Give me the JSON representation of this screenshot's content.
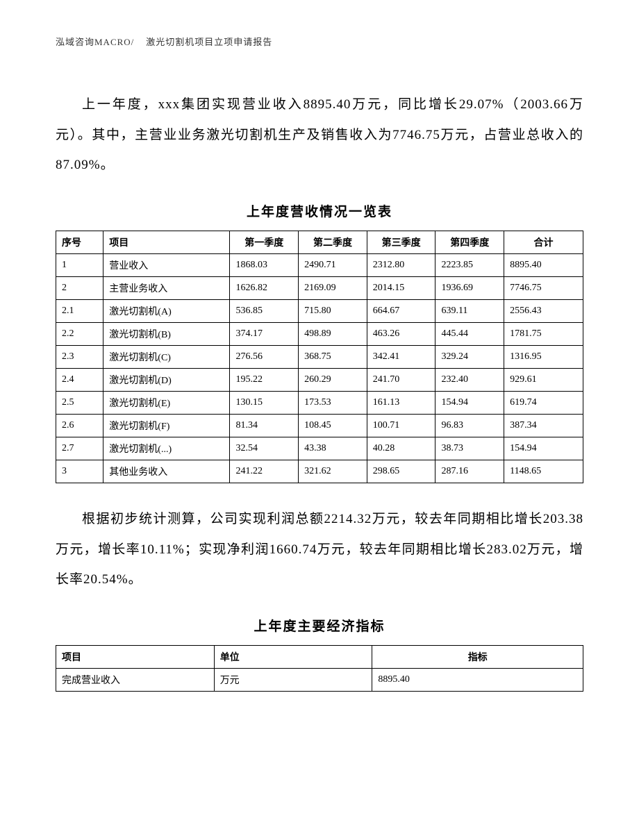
{
  "header": {
    "left": "泓域咨询MACRO/",
    "right": "激光切割机项目立项申请报告"
  },
  "paragraph1": "上一年度，xxx集团实现营业收入8895.40万元，同比增长29.07%（2003.66万元）。其中，主营业业务激光切割机生产及销售收入为7746.75万元，占营业总收入的87.09%。",
  "table1": {
    "title": "上年度营收情况一览表",
    "columns": [
      "序号",
      "项目",
      "第一季度",
      "第二季度",
      "第三季度",
      "第四季度",
      "合计"
    ],
    "rows": [
      [
        "1",
        "营业收入",
        "1868.03",
        "2490.71",
        "2312.80",
        "2223.85",
        "8895.40"
      ],
      [
        "2",
        "主营业务收入",
        "1626.82",
        "2169.09",
        "2014.15",
        "1936.69",
        "7746.75"
      ],
      [
        "2.1",
        "激光切割机(A)",
        "536.85",
        "715.80",
        "664.67",
        "639.11",
        "2556.43"
      ],
      [
        "2.2",
        "激光切割机(B)",
        "374.17",
        "498.89",
        "463.26",
        "445.44",
        "1781.75"
      ],
      [
        "2.3",
        "激光切割机(C)",
        "276.56",
        "368.75",
        "342.41",
        "329.24",
        "1316.95"
      ],
      [
        "2.4",
        "激光切割机(D)",
        "195.22",
        "260.29",
        "241.70",
        "232.40",
        "929.61"
      ],
      [
        "2.5",
        "激光切割机(E)",
        "130.15",
        "173.53",
        "161.13",
        "154.94",
        "619.74"
      ],
      [
        "2.6",
        "激光切割机(F)",
        "81.34",
        "108.45",
        "100.71",
        "96.83",
        "387.34"
      ],
      [
        "2.7",
        "激光切割机(...)",
        "32.54",
        "43.38",
        "40.28",
        "38.73",
        "154.94"
      ],
      [
        "3",
        "其他业务收入",
        "241.22",
        "321.62",
        "298.65",
        "287.16",
        "1148.65"
      ]
    ]
  },
  "paragraph2": "根据初步统计测算，公司实现利润总额2214.32万元，较去年同期相比增长203.38万元，增长率10.11%；实现净利润1660.74万元，较去年同期相比增长283.02万元，增长率20.54%。",
  "table2": {
    "title": "上年度主要经济指标",
    "columns": [
      "项目",
      "单位",
      "指标"
    ],
    "rows": [
      [
        "完成营业收入",
        "万元",
        "8895.40"
      ]
    ]
  }
}
